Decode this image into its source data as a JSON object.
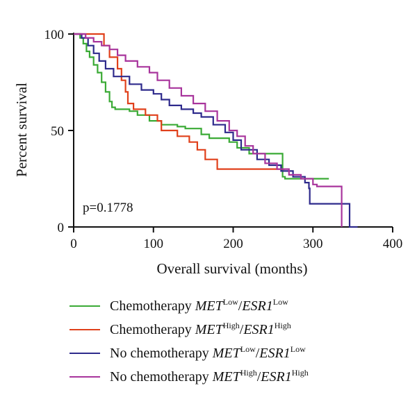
{
  "chart_data": {
    "type": "line",
    "subtype": "kaplan-meier-step",
    "xlabel": "Overall survival (months)",
    "ylabel": "Percent survival",
    "xlim": [
      0,
      400
    ],
    "ylim": [
      0,
      100
    ],
    "x_ticks": [
      "0",
      "100",
      "200",
      "300",
      "400"
    ],
    "y_ticks": [
      "0",
      "50",
      "100"
    ],
    "grid": false,
    "annotation": "p=0.1778",
    "legend_position": "bottom",
    "series": [
      {
        "name": "Chemotherapy METLow/ESR1Low",
        "legend": {
          "prefix": "Chemotherapy ",
          "g1": "MET",
          "s1": "Low",
          "sep": "/",
          "g2": "ESR1",
          "s2": "Low"
        },
        "color": "#3aaa35",
        "points": [
          [
            0,
            100
          ],
          [
            8,
            98
          ],
          [
            12,
            95
          ],
          [
            16,
            91
          ],
          [
            20,
            88
          ],
          [
            25,
            84
          ],
          [
            30,
            80
          ],
          [
            35,
            75
          ],
          [
            40,
            70
          ],
          [
            45,
            65
          ],
          [
            48,
            62
          ],
          [
            52,
            61
          ],
          [
            70,
            60
          ],
          [
            80,
            58
          ],
          [
            95,
            55
          ],
          [
            110,
            53
          ],
          [
            130,
            52
          ],
          [
            140,
            51
          ],
          [
            160,
            48
          ],
          [
            170,
            46
          ],
          [
            195,
            44
          ],
          [
            205,
            41
          ],
          [
            220,
            38
          ],
          [
            260,
            38
          ],
          [
            262,
            26
          ],
          [
            265,
            25
          ],
          [
            285,
            25
          ],
          [
            320,
            25
          ]
        ]
      },
      {
        "name": "Chemotherapy METHigh/ESR1High",
        "legend": {
          "prefix": "Chemotherapy ",
          "g1": "MET",
          "s1": "High",
          "sep": "/",
          "g2": "ESR1",
          "s2": "High"
        },
        "color": "#e0401b",
        "points": [
          [
            0,
            100
          ],
          [
            35,
            100
          ],
          [
            38,
            94
          ],
          [
            45,
            88
          ],
          [
            55,
            82
          ],
          [
            60,
            76
          ],
          [
            65,
            70
          ],
          [
            68,
            64
          ],
          [
            75,
            61
          ],
          [
            90,
            58
          ],
          [
            105,
            55
          ],
          [
            110,
            50
          ],
          [
            130,
            47
          ],
          [
            145,
            44
          ],
          [
            155,
            40
          ],
          [
            165,
            35
          ],
          [
            180,
            30
          ],
          [
            235,
            30
          ],
          [
            265,
            30
          ]
        ]
      },
      {
        "name": "No chemotherapy METLow/ESR1Low",
        "legend": {
          "prefix": "No chemotherapy ",
          "g1": "MET",
          "s1": "Low",
          "sep": "/",
          "g2": "ESR1",
          "s2": "Low"
        },
        "color": "#2e2a8c",
        "points": [
          [
            0,
            100
          ],
          [
            10,
            98
          ],
          [
            18,
            94
          ],
          [
            25,
            90
          ],
          [
            32,
            86
          ],
          [
            40,
            82
          ],
          [
            50,
            78
          ],
          [
            70,
            74
          ],
          [
            85,
            71
          ],
          [
            100,
            69
          ],
          [
            110,
            66
          ],
          [
            120,
            63
          ],
          [
            135,
            61
          ],
          [
            150,
            59
          ],
          [
            160,
            57
          ],
          [
            175,
            53
          ],
          [
            190,
            49
          ],
          [
            200,
            45
          ],
          [
            210,
            40
          ],
          [
            230,
            35
          ],
          [
            245,
            32
          ],
          [
            260,
            29
          ],
          [
            275,
            26
          ],
          [
            290,
            23
          ],
          [
            295,
            20
          ],
          [
            296,
            12
          ],
          [
            320,
            12
          ],
          [
            345,
            12
          ],
          [
            346,
            0
          ],
          [
            356,
            0
          ]
        ]
      },
      {
        "name": "No chemotherapy METHigh/ESR1High",
        "legend": {
          "prefix": "No chemotherapy ",
          "g1": "MET",
          "s1": "High",
          "sep": "/",
          "g2": "ESR1",
          "s2": "High"
        },
        "color": "#a8349c",
        "points": [
          [
            0,
            100
          ],
          [
            15,
            98
          ],
          [
            25,
            96
          ],
          [
            35,
            94
          ],
          [
            45,
            92
          ],
          [
            55,
            89
          ],
          [
            65,
            86
          ],
          [
            80,
            83
          ],
          [
            95,
            80
          ],
          [
            105,
            76
          ],
          [
            120,
            72
          ],
          [
            135,
            68
          ],
          [
            150,
            64
          ],
          [
            165,
            60
          ],
          [
            180,
            55
          ],
          [
            195,
            50
          ],
          [
            205,
            47
          ],
          [
            215,
            42
          ],
          [
            225,
            38
          ],
          [
            240,
            33
          ],
          [
            255,
            30
          ],
          [
            270,
            27
          ],
          [
            285,
            25
          ],
          [
            300,
            22
          ],
          [
            305,
            21
          ],
          [
            325,
            21
          ],
          [
            335,
            21
          ],
          [
            336,
            0
          ]
        ]
      }
    ]
  }
}
